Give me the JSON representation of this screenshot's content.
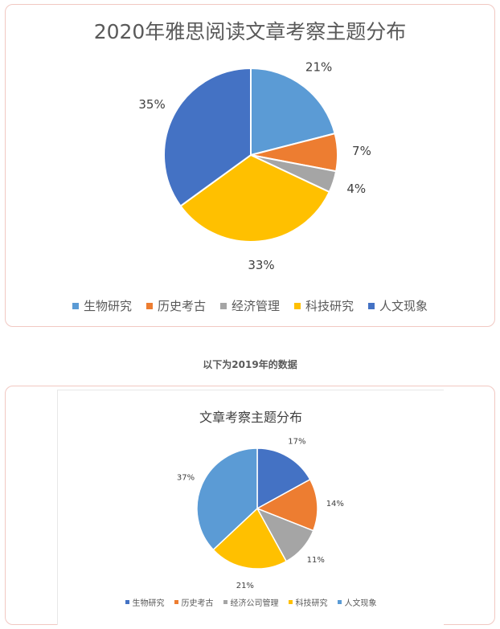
{
  "separator_text": "以下为2019年的数据",
  "chart_data": [
    {
      "type": "pie",
      "title": "2020年雅思阅读文章考察主题分布",
      "categories": [
        "生物研究",
        "历史考古",
        "经济管理",
        "科技研究",
        "人文现象"
      ],
      "values": [
        21,
        7,
        4,
        33,
        35
      ],
      "labels": [
        "21%",
        "7%",
        "4%",
        "33%",
        "35%"
      ],
      "colors": [
        "#5b9bd5",
        "#ed7d31",
        "#a5a5a5",
        "#ffc000",
        "#4472c4"
      ],
      "legend_position": "bottom"
    },
    {
      "type": "pie",
      "title": "文章考察主题分布",
      "categories": [
        "生物研究",
        "历史考古",
        "经济公司管理",
        "科技研究",
        "人文现象"
      ],
      "values": [
        17,
        14,
        11,
        21,
        37
      ],
      "labels": [
        "17%",
        "14%",
        "11%",
        "21%",
        "37%"
      ],
      "colors": [
        "#4472c4",
        "#ed7d31",
        "#a5a5a5",
        "#ffc000",
        "#5b9bd5"
      ],
      "legend_position": "bottom"
    }
  ]
}
